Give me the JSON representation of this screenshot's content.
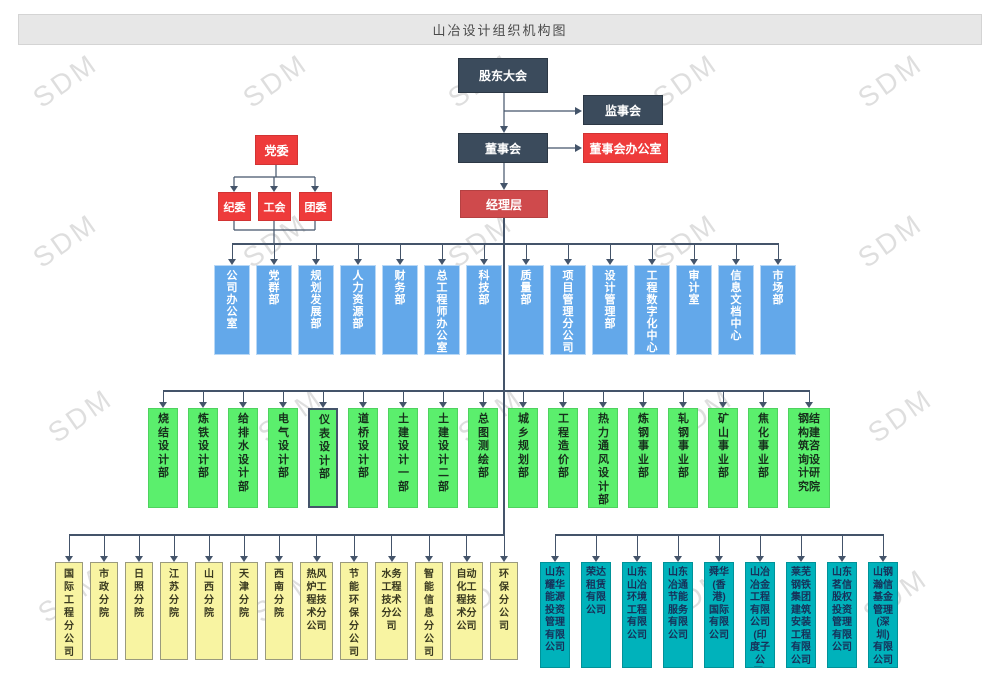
{
  "title": "山冶设计组织机构图",
  "watermark": "SDM",
  "colors": {
    "navy": "#3b4b5c",
    "red": "#ee3b3b",
    "mgmt": "#cf4a4c",
    "blue": "#63a8ea",
    "green": "#5bef6d",
    "yellow": "#f8f4a2",
    "cyan": "#00b2bb",
    "cyantext": "#173059",
    "line": "#44546a"
  },
  "governance": {
    "shareholders": "股东大会",
    "supervisory_board": "监事会",
    "board": "董事会",
    "board_office": "董事会办公室",
    "party_committee": "党委",
    "party_sub": [
      "纪委",
      "工会",
      "团委"
    ],
    "management": "经理层"
  },
  "functional_departments": [
    "公司办公室",
    "党群部",
    "规划发展部",
    "人力资源部",
    "财务部",
    "总工程师办公室",
    "科技部",
    "质量部",
    "项目管理分公司",
    "设计管理部",
    "工程数字化中心",
    "审计室",
    "信息文档中心",
    "市场部"
  ],
  "design_departments": [
    "烧结设计部",
    "炼铁设计部",
    "给排水设计部",
    "电气设计部",
    "仪表设计部",
    "道桥设计部",
    "土建设计一部",
    "土建设计二部",
    "总图测绘部",
    "城乡规划部",
    "工程造价部",
    "热力通风设计部",
    "炼钢事业部",
    "轧钢事业部",
    "矿山事业部",
    "焦化事业部",
    "钢结构建筑咨询设计研究院"
  ],
  "selected_department": "仪表设计部",
  "branches": [
    "国际工程分公司",
    "市政分院",
    "日照分院",
    "江苏分院",
    "山西分院",
    "天津分院",
    "西南分院",
    "热风炉工程技术分公司",
    "节能环保分公司",
    "水务工程技术分公司",
    "智能信息分公司",
    "自动化工程技术分公司",
    "环保分公司"
  ],
  "subsidiaries": [
    "山东耀华能源投资管理有限公司",
    "荣达租赁有限公司",
    "山东山冶环境工程有限公司",
    "山东冶通节能服务有限公司",
    "舜华(香港)国际有限公司",
    "山冶冶金工程有限公司(印度子公司)",
    "莱芜钢铁集团建筑安装工程有限公司",
    "山东茗信股权投资管理有限公司",
    "山钢瀚信基金管理(深圳)有限公司"
  ]
}
